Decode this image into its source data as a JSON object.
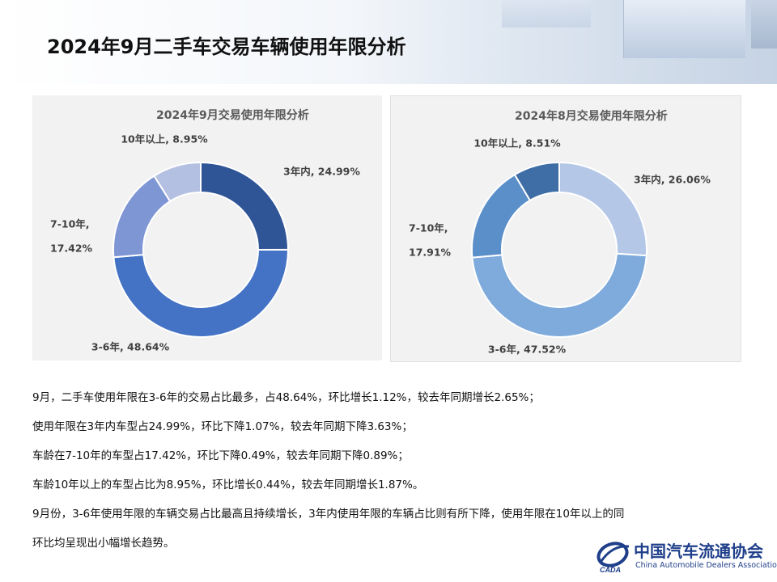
{
  "page": {
    "title": "2024年9月二手车交易车辆使用年限分析"
  },
  "chart_data": [
    {
      "type": "pie",
      "title": "2024年9月交易使用年限分析",
      "categories": [
        "3年内",
        "3-6年",
        "7-10年",
        "10年以上"
      ],
      "values": [
        24.99,
        48.64,
        17.42,
        8.95
      ],
      "labels": [
        "3年内, 24.99%",
        "3-6年, 48.64%",
        "7-10年,",
        "10年以上, 8.95%"
      ],
      "labels_line2": [
        "",
        "",
        "17.42%",
        ""
      ],
      "colors": [
        "#2f5597",
        "#4472c4",
        "#7f96d4",
        "#b4c0e2"
      ]
    },
    {
      "type": "pie",
      "title": "2024年8月交易使用年限分析",
      "categories": [
        "3年内",
        "3-6年",
        "7-10年",
        "10年以上"
      ],
      "values": [
        26.06,
        47.52,
        17.91,
        8.51
      ],
      "labels": [
        "3年内, 26.06%",
        "3-6年, 47.52%",
        "7-10年,",
        "10年以上, 8.51%"
      ],
      "labels_line2": [
        "",
        "",
        "17.91%",
        ""
      ],
      "colors": [
        "#b4c7e7",
        "#7faadc",
        "#5b8fc9",
        "#3e6ea5"
      ]
    }
  ],
  "body": {
    "lines": [
      "9月，二手车使用年限在3-6年的交易占比最多，占48.64%，环比增长1.12%，较去年同期增长2.65%；",
      "使用年限在3年内车型占24.99%，环比下降1.07%，较去年同期下降3.63%；",
      "车龄在7-10年的车型占17.42%，环比下降0.49%，较去年同期下降0.89%；",
      "车龄10年以上的车型占比为8.95%，环比增长0.44%，较去年同期增长1.87%。",
      "9月份，3-6年使用年限的车辆交易占比最高且持续增长，3年内使用年限的车辆占比则有所下降，使用年限在10年以上的同",
      "环比均呈现出小幅增长趋势。"
    ]
  },
  "logo": {
    "cn": "中国汽车流通协会",
    "en": "China Automobile Dealers Association",
    "mark_text": "CADA"
  }
}
